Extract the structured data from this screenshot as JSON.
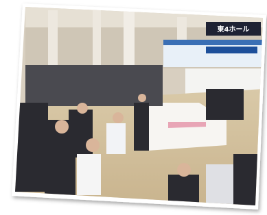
{
  "image": {
    "sign": "東4ホール"
  }
}
